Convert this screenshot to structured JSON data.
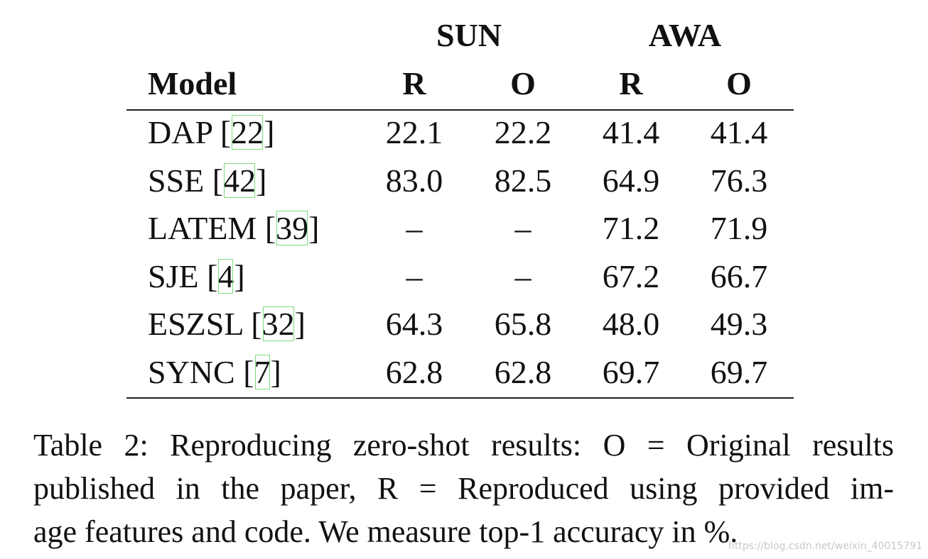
{
  "table": {
    "group_headers": [
      "SUN",
      "AWA"
    ],
    "columns": [
      "Model",
      "R",
      "O",
      "R",
      "O"
    ],
    "rows": [
      {
        "model": "DAP",
        "ref": [
          "[",
          "22",
          "]"
        ],
        "values": [
          "22.1",
          "22.2",
          "41.4",
          "41.4"
        ]
      },
      {
        "model": "SSE",
        "ref": [
          "[",
          "42",
          "]"
        ],
        "values": [
          "83.0",
          "82.5",
          "64.9",
          "76.3"
        ]
      },
      {
        "model": "LATEM",
        "ref": [
          "[",
          "39",
          "]"
        ],
        "values": [
          "–",
          "–",
          "71.2",
          "71.9"
        ]
      },
      {
        "model": "SJE",
        "ref": [
          "[",
          "4",
          "]"
        ],
        "values": [
          "–",
          "–",
          "67.2",
          "66.7"
        ]
      },
      {
        "model": "ESZSL",
        "ref": [
          "[",
          "32",
          "]"
        ],
        "values": [
          "64.3",
          "65.8",
          "48.0",
          "49.3"
        ]
      },
      {
        "model": "SYNC",
        "ref": [
          "[",
          "7",
          "]"
        ],
        "values": [
          "62.8",
          "62.8",
          "69.7",
          "69.7"
        ]
      }
    ]
  },
  "caption": [
    "Table 2: Reproducing zero-shot results: O = Original results",
    "published in the paper, R = Reproduced using provided im-",
    "age features and code. We measure top-1 accuracy in %."
  ],
  "watermark": "https://blog.csdn.net/weixin_40015791"
}
